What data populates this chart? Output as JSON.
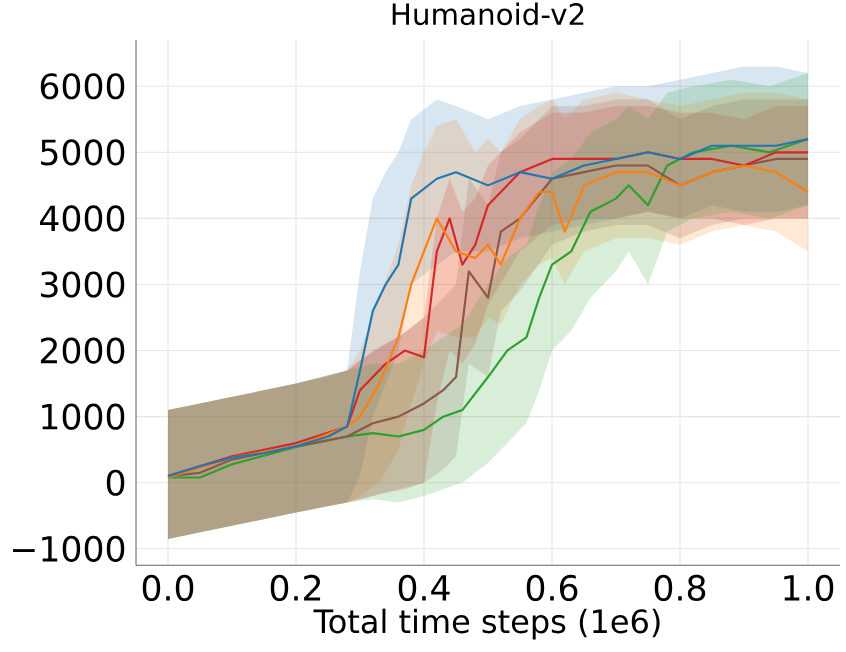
{
  "chart_data": {
    "type": "line",
    "title": "Humanoid-v2",
    "xlabel": "Total time steps (1e6)",
    "xlim": [
      -0.05,
      1.05
    ],
    "ylim": [
      -1250,
      6700
    ],
    "xticks": [
      {
        "value": 0,
        "label": "0.0"
      },
      {
        "value": 0.2,
        "label": "0.2"
      },
      {
        "value": 0.4,
        "label": "0.4"
      },
      {
        "value": 0.6,
        "label": "0.6"
      },
      {
        "value": 0.8,
        "label": "0.8"
      },
      {
        "value": 1.0,
        "label": "1.0"
      }
    ],
    "yticks": [
      {
        "value": -1000,
        "label": "−1000"
      },
      0,
      1000,
      2000,
      3000,
      4000,
      5000,
      6000
    ],
    "grid": true,
    "marker": "none",
    "line_style": "solid",
    "series": [
      {
        "color": "#1f77b4",
        "x": [
          0,
          0.05,
          0.1,
          0.15,
          0.2,
          0.25,
          0.28,
          0.3,
          0.32,
          0.34,
          0.36,
          0.38,
          0.42,
          0.45,
          0.5,
          0.55,
          0.6,
          0.65,
          0.7,
          0.75,
          0.8,
          0.85,
          0.9,
          0.95,
          1.0
        ],
        "values": [
          100,
          250,
          380,
          450,
          550,
          700,
          850,
          1700,
          2600,
          3000,
          3300,
          4300,
          4600,
          4700,
          4500,
          4700,
          4600,
          4800,
          4900,
          5000,
          4900,
          5100,
          5100,
          5100,
          5200
        ],
        "lower": [
          -850,
          -750,
          -650,
          -550,
          -450,
          -350,
          -300,
          100,
          1000,
          1500,
          2000,
          3000,
          3300,
          3500,
          3500,
          3700,
          3800,
          3900,
          4000,
          4100,
          4000,
          4200,
          4100,
          4100,
          4200
        ],
        "upper": [
          1100,
          1200,
          1300,
          1400,
          1500,
          1600,
          1700,
          3200,
          4300,
          4700,
          5000,
          5500,
          5800,
          5700,
          5500,
          5700,
          5800,
          5900,
          6000,
          6000,
          6100,
          6200,
          6300,
          6300,
          6200
        ]
      },
      {
        "color": "#ff7f0e",
        "x": [
          0,
          0.1,
          0.2,
          0.28,
          0.3,
          0.33,
          0.36,
          0.38,
          0.4,
          0.42,
          0.45,
          0.48,
          0.5,
          0.52,
          0.55,
          0.58,
          0.6,
          0.62,
          0.65,
          0.7,
          0.75,
          0.8,
          0.85,
          0.9,
          0.95,
          1.0
        ],
        "values": [
          80,
          380,
          550,
          850,
          1000,
          1500,
          2200,
          3000,
          3500,
          4000,
          3500,
          3400,
          3600,
          3300,
          4000,
          4400,
          4400,
          3800,
          4500,
          4700,
          4700,
          4500,
          4700,
          4800,
          4700,
          4400
        ],
        "lower": [
          -850,
          -650,
          -450,
          -300,
          -200,
          0,
          500,
          1200,
          1800,
          2300,
          2200,
          2200,
          2500,
          2400,
          3000,
          3300,
          3400,
          3000,
          3500,
          3700,
          3700,
          3600,
          3800,
          3900,
          3800,
          3500
        ],
        "upper": [
          1100,
          1300,
          1500,
          1700,
          2000,
          2800,
          3600,
          4500,
          5000,
          5400,
          5500,
          5000,
          5200,
          5000,
          5500,
          5700,
          5800,
          5500,
          5800,
          5900,
          5800,
          5700,
          5800,
          5900,
          5900,
          5800
        ]
      },
      {
        "color": "#d62728",
        "x": [
          0,
          0.1,
          0.2,
          0.28,
          0.3,
          0.34,
          0.37,
          0.4,
          0.42,
          0.44,
          0.46,
          0.48,
          0.5,
          0.55,
          0.6,
          0.65,
          0.7,
          0.75,
          0.8,
          0.85,
          0.9,
          0.95,
          1.0
        ],
        "values": [
          100,
          400,
          600,
          850,
          1400,
          1800,
          2000,
          1900,
          3500,
          4000,
          3300,
          3600,
          4200,
          4700,
          4900,
          4900,
          4900,
          5000,
          4900,
          4900,
          4800,
          5000,
          5000
        ],
        "lower": [
          -850,
          -650,
          -450,
          -300,
          -250,
          -150,
          -100,
          0,
          1200,
          2000,
          1800,
          2100,
          2700,
          3500,
          3900,
          4000,
          4000,
          4100,
          4000,
          4000,
          3900,
          4000,
          4000
        ],
        "upper": [
          1100,
          1300,
          1500,
          1700,
          1850,
          2100,
          2275,
          2500,
          4000,
          4600,
          4100,
          4300,
          4800,
          5300,
          5600,
          5600,
          5700,
          5700,
          5600,
          5600,
          5500,
          5700,
          5700
        ]
      },
      {
        "color": "#8c564b",
        "x": [
          0,
          0.05,
          0.1,
          0.2,
          0.28,
          0.32,
          0.36,
          0.4,
          0.43,
          0.45,
          0.47,
          0.5,
          0.52,
          0.55,
          0.6,
          0.65,
          0.7,
          0.75,
          0.8,
          0.85,
          0.9,
          0.95,
          1.0
        ],
        "values": [
          100,
          150,
          350,
          550,
          700,
          900,
          1000,
          1200,
          1400,
          1600,
          3200,
          2800,
          3800,
          4000,
          4600,
          4700,
          4800,
          4800,
          4500,
          4700,
          4800,
          4900,
          4900
        ],
        "lower": [
          -850,
          -750,
          -650,
          -450,
          -300,
          -200,
          -100,
          0,
          200,
          400,
          1800,
          1600,
          2600,
          2900,
          3600,
          3800,
          3900,
          3900,
          3700,
          3900,
          4000,
          4000,
          4000
        ],
        "upper": [
          1100,
          1200,
          1300,
          1500,
          1700,
          2000,
          2200,
          2500,
          2800,
          3000,
          4600,
          4200,
          5000,
          5200,
          5700,
          5700,
          5800,
          5800,
          5500,
          5700,
          5800,
          5800,
          5800
        ]
      },
      {
        "color": "#2ca02c",
        "x": [
          0,
          0.05,
          0.1,
          0.2,
          0.28,
          0.32,
          0.36,
          0.4,
          0.43,
          0.46,
          0.5,
          0.53,
          0.56,
          0.58,
          0.6,
          0.63,
          0.66,
          0.7,
          0.72,
          0.75,
          0.78,
          0.82,
          0.88,
          0.94,
          1.0
        ],
        "values": [
          80,
          80,
          280,
          540,
          700,
          750,
          700,
          800,
          1000,
          1100,
          1600,
          2000,
          2200,
          2800,
          3300,
          3500,
          4100,
          4300,
          4500,
          4200,
          4800,
          5000,
          5100,
          5000,
          5200
        ],
        "lower": [
          -850,
          -750,
          -650,
          -450,
          -300,
          -250,
          -300,
          -200,
          -100,
          0,
          300,
          600,
          900,
          1400,
          2000,
          2300,
          2800,
          3200,
          3500,
          3000,
          3800,
          4000,
          4100,
          4000,
          4200
        ],
        "upper": [
          1100,
          1200,
          1300,
          1500,
          1700,
          1800,
          1800,
          2000,
          2200,
          2400,
          3000,
          3400,
          3600,
          4200,
          4700,
          4900,
          5300,
          5500,
          5700,
          5500,
          5900,
          6000,
          6100,
          6000,
          6200
        ]
      }
    ]
  }
}
